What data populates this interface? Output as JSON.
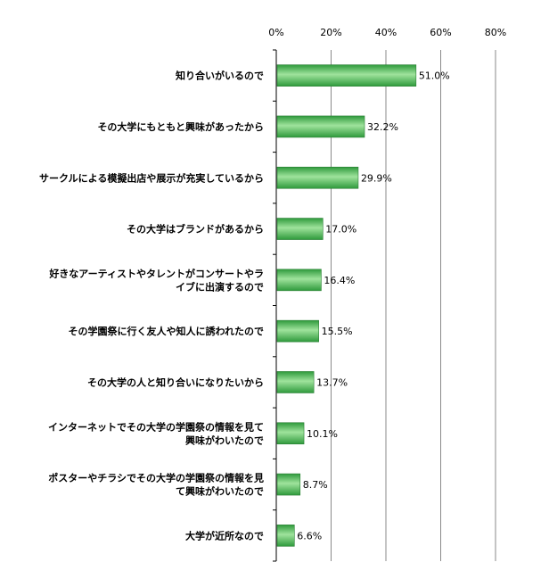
{
  "chart_data": {
    "type": "bar",
    "orientation": "horizontal",
    "categories": [
      [
        "知り合いがいるので"
      ],
      [
        "その大学にもともと興味があったから"
      ],
      [
        "サークルによる模擬出店や展示が充実しているから"
      ],
      [
        "その大学はブランドがあるから"
      ],
      [
        "好きなアーティストやタレントがコンサートやラ",
        "イブに出演するので"
      ],
      [
        "その学園祭に行く友人や知人に誘われたので"
      ],
      [
        "その大学の人と知り合いになりたいから"
      ],
      [
        "インターネットでその大学の学園祭の情報を見て",
        "興味がわいたので"
      ],
      [
        "ポスターやチラシでその大学の学園祭の情報を見",
        "て興味がわいたので"
      ],
      [
        "大学が近所なので"
      ]
    ],
    "values": [
      51.0,
      32.2,
      29.9,
      17.0,
      16.4,
      15.5,
      13.7,
      10.1,
      8.7,
      6.6
    ],
    "value_labels": [
      "51.0%",
      "32.2%",
      "29.9%",
      "17.0%",
      "16.4%",
      "15.5%",
      "13.7%",
      "10.1%",
      "8.7%",
      "6.6%"
    ],
    "x_ticks": [
      "0%",
      "20%",
      "40%",
      "60%",
      "80%"
    ],
    "xlim": [
      0,
      80
    ],
    "grid": true,
    "bar_color": "#3fa84b",
    "bar_highlight": "#9fe39c"
  }
}
